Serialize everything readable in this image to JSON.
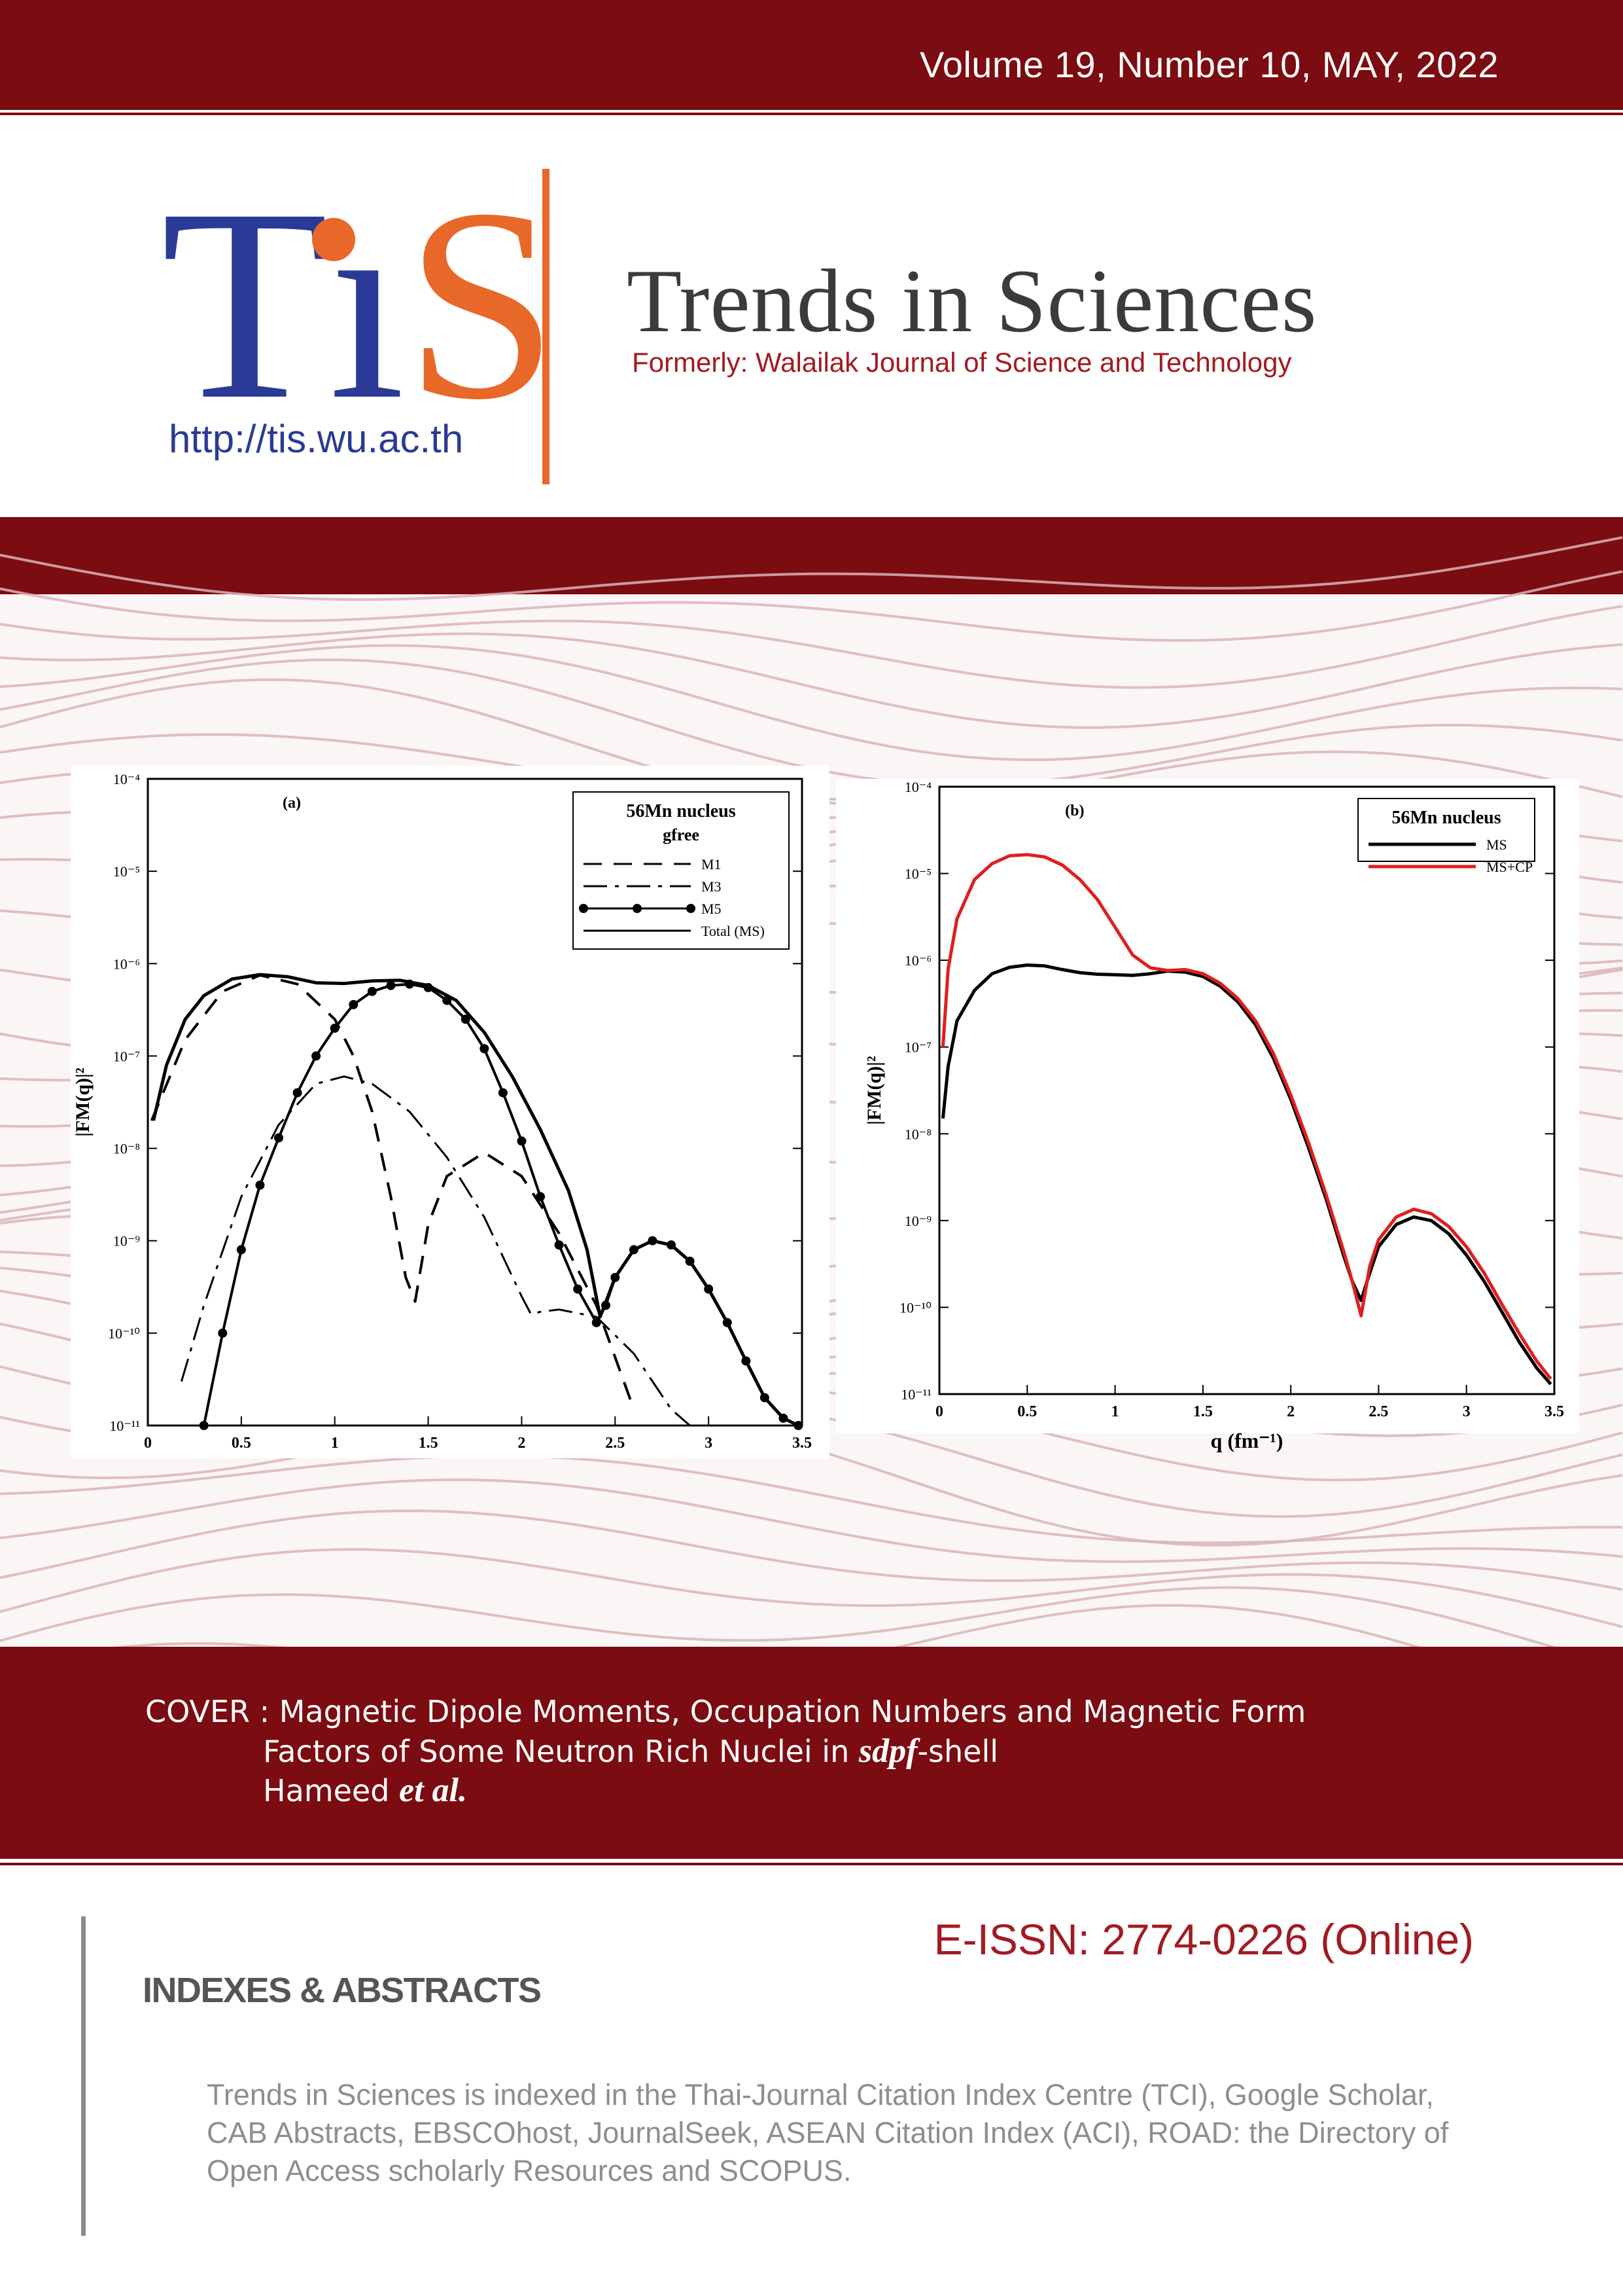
{
  "header": {
    "volume": "Volume 19, Number 10,  MAY, 2022",
    "logo_letters": "TiS",
    "url": "http://tis.wu.ac.th",
    "journal_title": "Trends in Sciences",
    "formerly": "Formerly: Walailak Journal of Science and Technology"
  },
  "colors": {
    "brand_red": "#7b0c12",
    "logo_blue": "#2a3a96",
    "logo_orange": "#e8682a",
    "series_red": "#e01e1e"
  },
  "chart_data": [
    {
      "type": "line",
      "title": "(a)",
      "legend_title": "56Mn nucleus",
      "legend_subtitle": "gfree",
      "legend_position": "top-right",
      "xlabel": "",
      "ylabel": "|FM(q)|²",
      "x_ticks": [
        "0",
        "0.5",
        "1",
        "1.5",
        "2",
        "2.5",
        "3",
        "3.5"
      ],
      "y_ticks": [
        "10⁻⁴",
        "10⁻⁵",
        "10⁻⁶",
        "10⁻⁷",
        "10⁻⁸",
        "10⁻⁹",
        "10⁻¹⁰",
        "10⁻¹¹"
      ],
      "xlim": [
        0,
        3.5
      ],
      "ylim": [
        1e-11,
        0.0001
      ],
      "yscale": "log",
      "series": [
        {
          "name": "M1",
          "style": "dashed",
          "x": [
            0.02,
            0.2,
            0.4,
            0.6,
            0.8,
            1.0,
            1.1,
            1.2,
            1.3,
            1.38,
            1.43,
            1.5,
            1.6,
            1.8,
            2.0,
            2.2,
            2.4,
            2.6
          ],
          "y": [
            2e-08,
            1.5e-07,
            5e-07,
            7.5e-07,
            6e-07,
            2.5e-07,
            1e-07,
            2.5e-08,
            3e-09,
            4e-10,
            2.2e-10,
            1.5e-09,
            5e-09,
            9e-09,
            5e-09,
            1.2e-09,
            2e-10,
            1.5e-11
          ]
        },
        {
          "name": "M3",
          "style": "dash-dot",
          "x": [
            0.18,
            0.3,
            0.5,
            0.7,
            0.9,
            1.05,
            1.2,
            1.4,
            1.6,
            1.8,
            2.0,
            2.05,
            2.1,
            2.2,
            2.4,
            2.6,
            2.8,
            2.9
          ],
          "y": [
            3e-11,
            2e-10,
            3e-09,
            1.8e-08,
            5e-08,
            6e-08,
            5e-08,
            2.5e-08,
            8e-09,
            1.8e-09,
            2.5e-10,
            1.6e-10,
            1.7e-10,
            1.8e-10,
            1.5e-10,
            6e-11,
            1.5e-11,
            8e-12
          ]
        },
        {
          "name": "M5",
          "style": "solid-dots",
          "x": [
            0.3,
            0.4,
            0.5,
            0.6,
            0.7,
            0.8,
            0.9,
            1.0,
            1.1,
            1.2,
            1.3,
            1.4,
            1.5,
            1.6,
            1.7,
            1.8,
            1.9,
            2.0,
            2.1,
            2.2,
            2.3,
            2.4,
            2.45,
            2.5,
            2.6,
            2.7,
            2.8,
            2.9,
            3.0,
            3.1,
            3.2,
            3.3,
            3.4,
            3.48
          ],
          "y": [
            1e-11,
            1e-10,
            8e-10,
            4e-09,
            1.3e-08,
            4e-08,
            1e-07,
            2e-07,
            3.6e-07,
            5e-07,
            5.8e-07,
            6e-07,
            5.5e-07,
            4e-07,
            2.5e-07,
            1.2e-07,
            4e-08,
            1.2e-08,
            3e-09,
            9e-10,
            3e-10,
            1.3e-10,
            2e-10,
            4e-10,
            8e-10,
            1e-09,
            9e-10,
            6e-10,
            3e-10,
            1.3e-10,
            5e-11,
            2e-11,
            1.2e-11,
            1e-11
          ]
        },
        {
          "name": "Total (MS)",
          "style": "solid",
          "x": [
            0.03,
            0.1,
            0.2,
            0.3,
            0.45,
            0.6,
            0.75,
            0.9,
            1.05,
            1.2,
            1.35,
            1.5,
            1.65,
            1.8,
            1.95,
            2.1,
            2.25,
            2.35,
            2.42,
            2.5,
            2.6,
            2.7,
            2.8,
            2.9,
            3.0,
            3.1,
            3.2,
            3.3,
            3.4,
            3.48
          ],
          "y": [
            2e-08,
            8e-08,
            2.5e-07,
            4.5e-07,
            6.8e-07,
            7.6e-07,
            7.2e-07,
            6.2e-07,
            6.1e-07,
            6.5e-07,
            6.6e-07,
            5.8e-07,
            4e-07,
            1.8e-07,
            6e-08,
            1.6e-08,
            3.5e-09,
            8e-10,
            1.5e-10,
            4e-10,
            8e-10,
            1e-09,
            9e-10,
            6e-10,
            3e-10,
            1.3e-10,
            5e-11,
            2e-11,
            1.2e-11,
            1e-11
          ]
        }
      ]
    },
    {
      "type": "line",
      "title": "(b)",
      "legend_title": "56Mn nucleus",
      "legend_position": "top-right",
      "xlabel": "q (fm⁻¹)",
      "ylabel": "|FM(q)|²",
      "x_ticks": [
        "0",
        "0.5",
        "1",
        "1.5",
        "2",
        "2.5",
        "3",
        "3.5"
      ],
      "y_ticks": [
        "10⁻⁴",
        "10⁻⁵",
        "10⁻⁶",
        "10⁻⁷",
        "10⁻⁸",
        "10⁻⁹",
        "10⁻¹⁰",
        "10⁻¹¹"
      ],
      "xlim": [
        0,
        3.5
      ],
      "ylim": [
        1e-11,
        0.0001
      ],
      "yscale": "log",
      "series": [
        {
          "name": "MS",
          "color": "#000000",
          "x": [
            0.02,
            0.05,
            0.1,
            0.2,
            0.3,
            0.4,
            0.5,
            0.6,
            0.7,
            0.8,
            0.9,
            1.0,
            1.1,
            1.2,
            1.3,
            1.4,
            1.5,
            1.6,
            1.7,
            1.8,
            1.9,
            2.0,
            2.1,
            2.2,
            2.3,
            2.35,
            2.4,
            2.45,
            2.5,
            2.6,
            2.7,
            2.8,
            2.9,
            3.0,
            3.1,
            3.2,
            3.3,
            3.4,
            3.48
          ],
          "y": [
            1.5e-08,
            6e-08,
            2e-07,
            4.5e-07,
            7e-07,
            8.3e-07,
            8.8e-07,
            8.6e-07,
            7.8e-07,
            7.2e-07,
            6.9e-07,
            6.8e-07,
            6.7e-07,
            7e-07,
            7.5e-07,
            7.3e-07,
            6.5e-07,
            5e-07,
            3.3e-07,
            1.8e-07,
            7.5e-08,
            2.5e-08,
            7e-09,
            1.8e-09,
            4e-10,
            2e-10,
            1.2e-10,
            2.5e-10,
            5e-10,
            9e-10,
            1.1e-09,
            1e-09,
            7e-10,
            4e-10,
            2e-10,
            9e-11,
            4e-11,
            2e-11,
            1.3e-11
          ]
        },
        {
          "name": "MS+CP",
          "color": "#e01e1e",
          "x": [
            0.02,
            0.05,
            0.1,
            0.2,
            0.3,
            0.4,
            0.5,
            0.6,
            0.7,
            0.8,
            0.9,
            1.0,
            1.1,
            1.2,
            1.3,
            1.4,
            1.5,
            1.6,
            1.7,
            1.8,
            1.9,
            2.0,
            2.1,
            2.2,
            2.3,
            2.35,
            2.4,
            2.45,
            2.5,
            2.6,
            2.7,
            2.8,
            2.9,
            3.0,
            3.1,
            3.2,
            3.3,
            3.4,
            3.48
          ],
          "y": [
            1e-07,
            8e-07,
            3e-06,
            8.5e-06,
            1.3e-05,
            1.6e-05,
            1.65e-05,
            1.55e-05,
            1.25e-05,
            8.5e-06,
            5e-06,
            2.4e-06,
            1.15e-06,
            8.2e-07,
            7.6e-07,
            7.8e-07,
            7e-07,
            5.4e-07,
            3.6e-07,
            2e-07,
            8.5e-08,
            2.8e-08,
            8e-09,
            2e-09,
            4.5e-10,
            2e-10,
            8e-11,
            3e-10,
            6e-10,
            1.1e-09,
            1.35e-09,
            1.2e-09,
            8.5e-10,
            5e-10,
            2.5e-10,
            1.1e-10,
            5e-11,
            2.4e-11,
            1.5e-11
          ]
        }
      ]
    }
  ],
  "cover": {
    "prefix": "COVER :",
    "line1": "Magnetic Dipole Moments, Occupation Numbers and Magnetic Form",
    "line2_a": "Factors of Some Neutron Rich Nuclei in",
    "line2_i": "sdpf",
    "line2_b": "-shell",
    "line3_a": "Hameed",
    "line3_i": "et al."
  },
  "footer": {
    "issn": "E-ISSN: 2774-0226 (Online)",
    "indexes_heading": "INDEXES & ABSTRACTS",
    "indexes_text": "Trends in Sciences is indexed in the Thai-Journal Citation Index Centre (TCI), Google Scholar, CAB Abstracts, EBSCOhost, JournalSeek, ASEAN Citation Index (ACI),  ROAD: the Directory of Open Access scholarly Resources and SCOPUS."
  }
}
